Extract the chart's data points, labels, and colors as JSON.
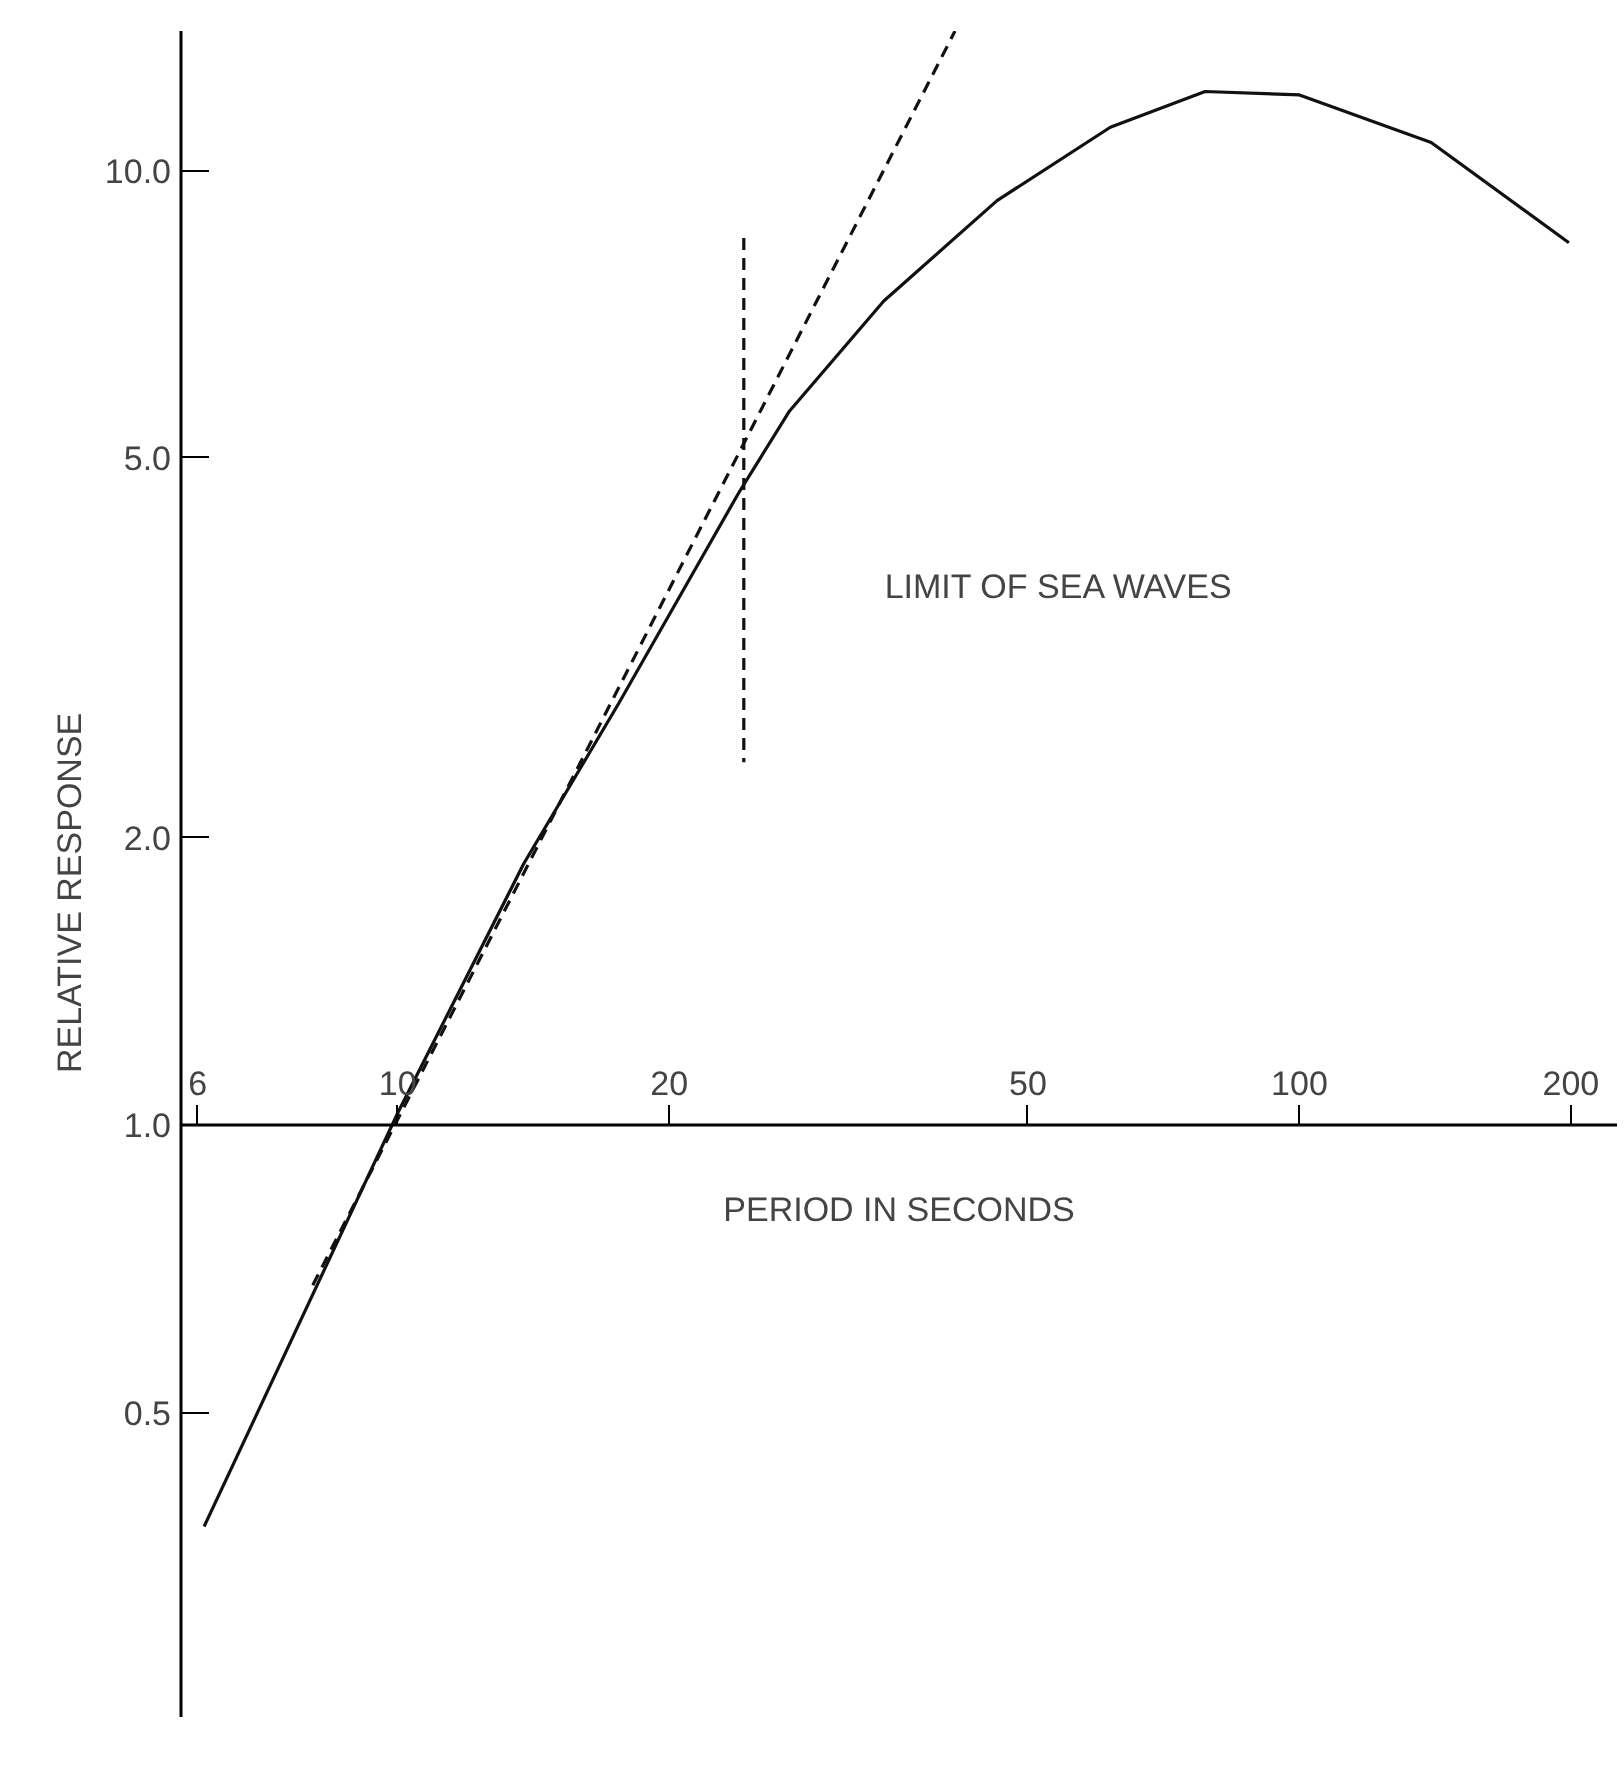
{
  "chart_data": {
    "type": "line",
    "xlabel": "PERIOD IN SECONDS",
    "ylabel": "RELATIVE     RESPONSE",
    "log": "xy",
    "grid": false,
    "marker": "none",
    "xlim": [
      5.75,
      225
    ],
    "ylim": [
      0.24,
      14
    ],
    "xticks": [
      6,
      10,
      20,
      50,
      100,
      200
    ],
    "yticks": [
      {
        "value": 0.5,
        "label": "0.5"
      },
      {
        "value": 1,
        "label": "1.0"
      },
      {
        "value": 2,
        "label": "2.0"
      },
      {
        "value": 5,
        "label": "5.0"
      },
      {
        "value": 10,
        "label": "10.0"
      }
    ],
    "series": [
      {
        "color": "#111111",
        "line_style": "solid",
        "x": [
          6.1,
          10,
          13.8,
          17.6,
          23.9,
          27.2,
          34.6,
          46.2,
          61.7,
          78.6,
          100,
          140,
          199
        ],
        "values": [
          0.38,
          1.03,
          1.88,
          2.77,
          4.6,
          5.6,
          7.3,
          9.3,
          11.1,
          12.1,
          12.0,
          10.7,
          8.4
        ]
      },
      {
        "color": "#111111",
        "line_style": "dashed",
        "x": [
          8.05,
          41.5
        ],
        "values": [
          0.68,
          14.0
        ]
      },
      {
        "color": "#111111",
        "line_style": "dashed",
        "x": [
          24.2,
          24.2
        ],
        "values": [
          8.5,
          2.4
        ]
      }
    ],
    "annotations": [
      "LIMIT OF SEA WAVES"
    ]
  }
}
